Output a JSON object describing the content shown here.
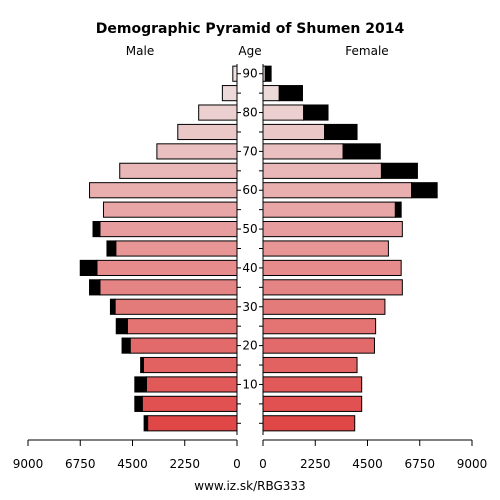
{
  "chart_data": {
    "type": "bar",
    "orientation": "horizontal-pyramid",
    "title": "Demographic Pyramid of Shumen 2014",
    "left_label": "Male",
    "center_label": "Age",
    "right_label": "Female",
    "footer": "www.iz.sk/RBG333",
    "xlim": [
      0,
      9000
    ],
    "x_ticks": [
      0,
      2250,
      4500,
      6750,
      9000
    ],
    "x_tick_labels_left": [
      "9000",
      "6750",
      "4500",
      "2250",
      "0"
    ],
    "x_tick_labels_right": [
      "0",
      "2250",
      "4500",
      "6750",
      "9000"
    ],
    "age_labels": [
      {
        "age": 10,
        "label": "10"
      },
      {
        "age": 20,
        "label": "20"
      },
      {
        "age": 30,
        "label": "30"
      },
      {
        "age": 40,
        "label": "40"
      },
      {
        "age": 50,
        "label": "50"
      },
      {
        "age": 60,
        "label": "60"
      },
      {
        "age": 70,
        "label": "70"
      },
      {
        "age": 80,
        "label": "80"
      },
      {
        "age": 90,
        "label": "90"
      }
    ],
    "age_groups": [
      "0-4",
      "5-9",
      "10-14",
      "15-19",
      "20-24",
      "25-29",
      "30-34",
      "35-39",
      "40-44",
      "45-49",
      "50-54",
      "55-59",
      "60-64",
      "65-69",
      "70-74",
      "75-79",
      "80-84",
      "85-89",
      "90+"
    ],
    "series": [
      {
        "name": "Male",
        "values": [
          4000,
          4400,
          4400,
          4150,
          4950,
          5200,
          5450,
          6350,
          6750,
          5600,
          6200,
          5750,
          6350,
          5050,
          3450,
          2550,
          1650,
          630,
          180
        ],
        "excess": [
          0,
          0,
          0,
          0,
          0,
          0,
          0,
          0,
          0,
          0,
          0,
          0,
          0,
          0,
          0,
          0,
          0,
          0,
          0
        ]
      },
      {
        "name": "Female",
        "values": [
          3950,
          4250,
          4250,
          4050,
          4800,
          4850,
          5250,
          6000,
          5950,
          5400,
          6000,
          5950,
          7500,
          6650,
          5050,
          4050,
          2800,
          1700,
          350
        ],
        "excess": [
          0,
          0,
          0,
          0,
          0,
          0,
          0,
          0,
          0,
          0,
          0,
          0,
          0,
          0,
          0,
          0,
          0,
          0,
          0
        ]
      }
    ],
    "male_black_portion": [
      150,
      320,
      500,
      120,
      350,
      480,
      200,
      450,
      720,
      380,
      300,
      0,
      0,
      0,
      0,
      0,
      0,
      0,
      0
    ],
    "female_black_portion": [
      0,
      0,
      0,
      0,
      0,
      0,
      0,
      0,
      0,
      0,
      0,
      250,
      1100,
      1550,
      1600,
      1400,
      1050,
      1000,
      250
    ],
    "color_young": "#e04848",
    "color_old": "#ede1e1"
  }
}
